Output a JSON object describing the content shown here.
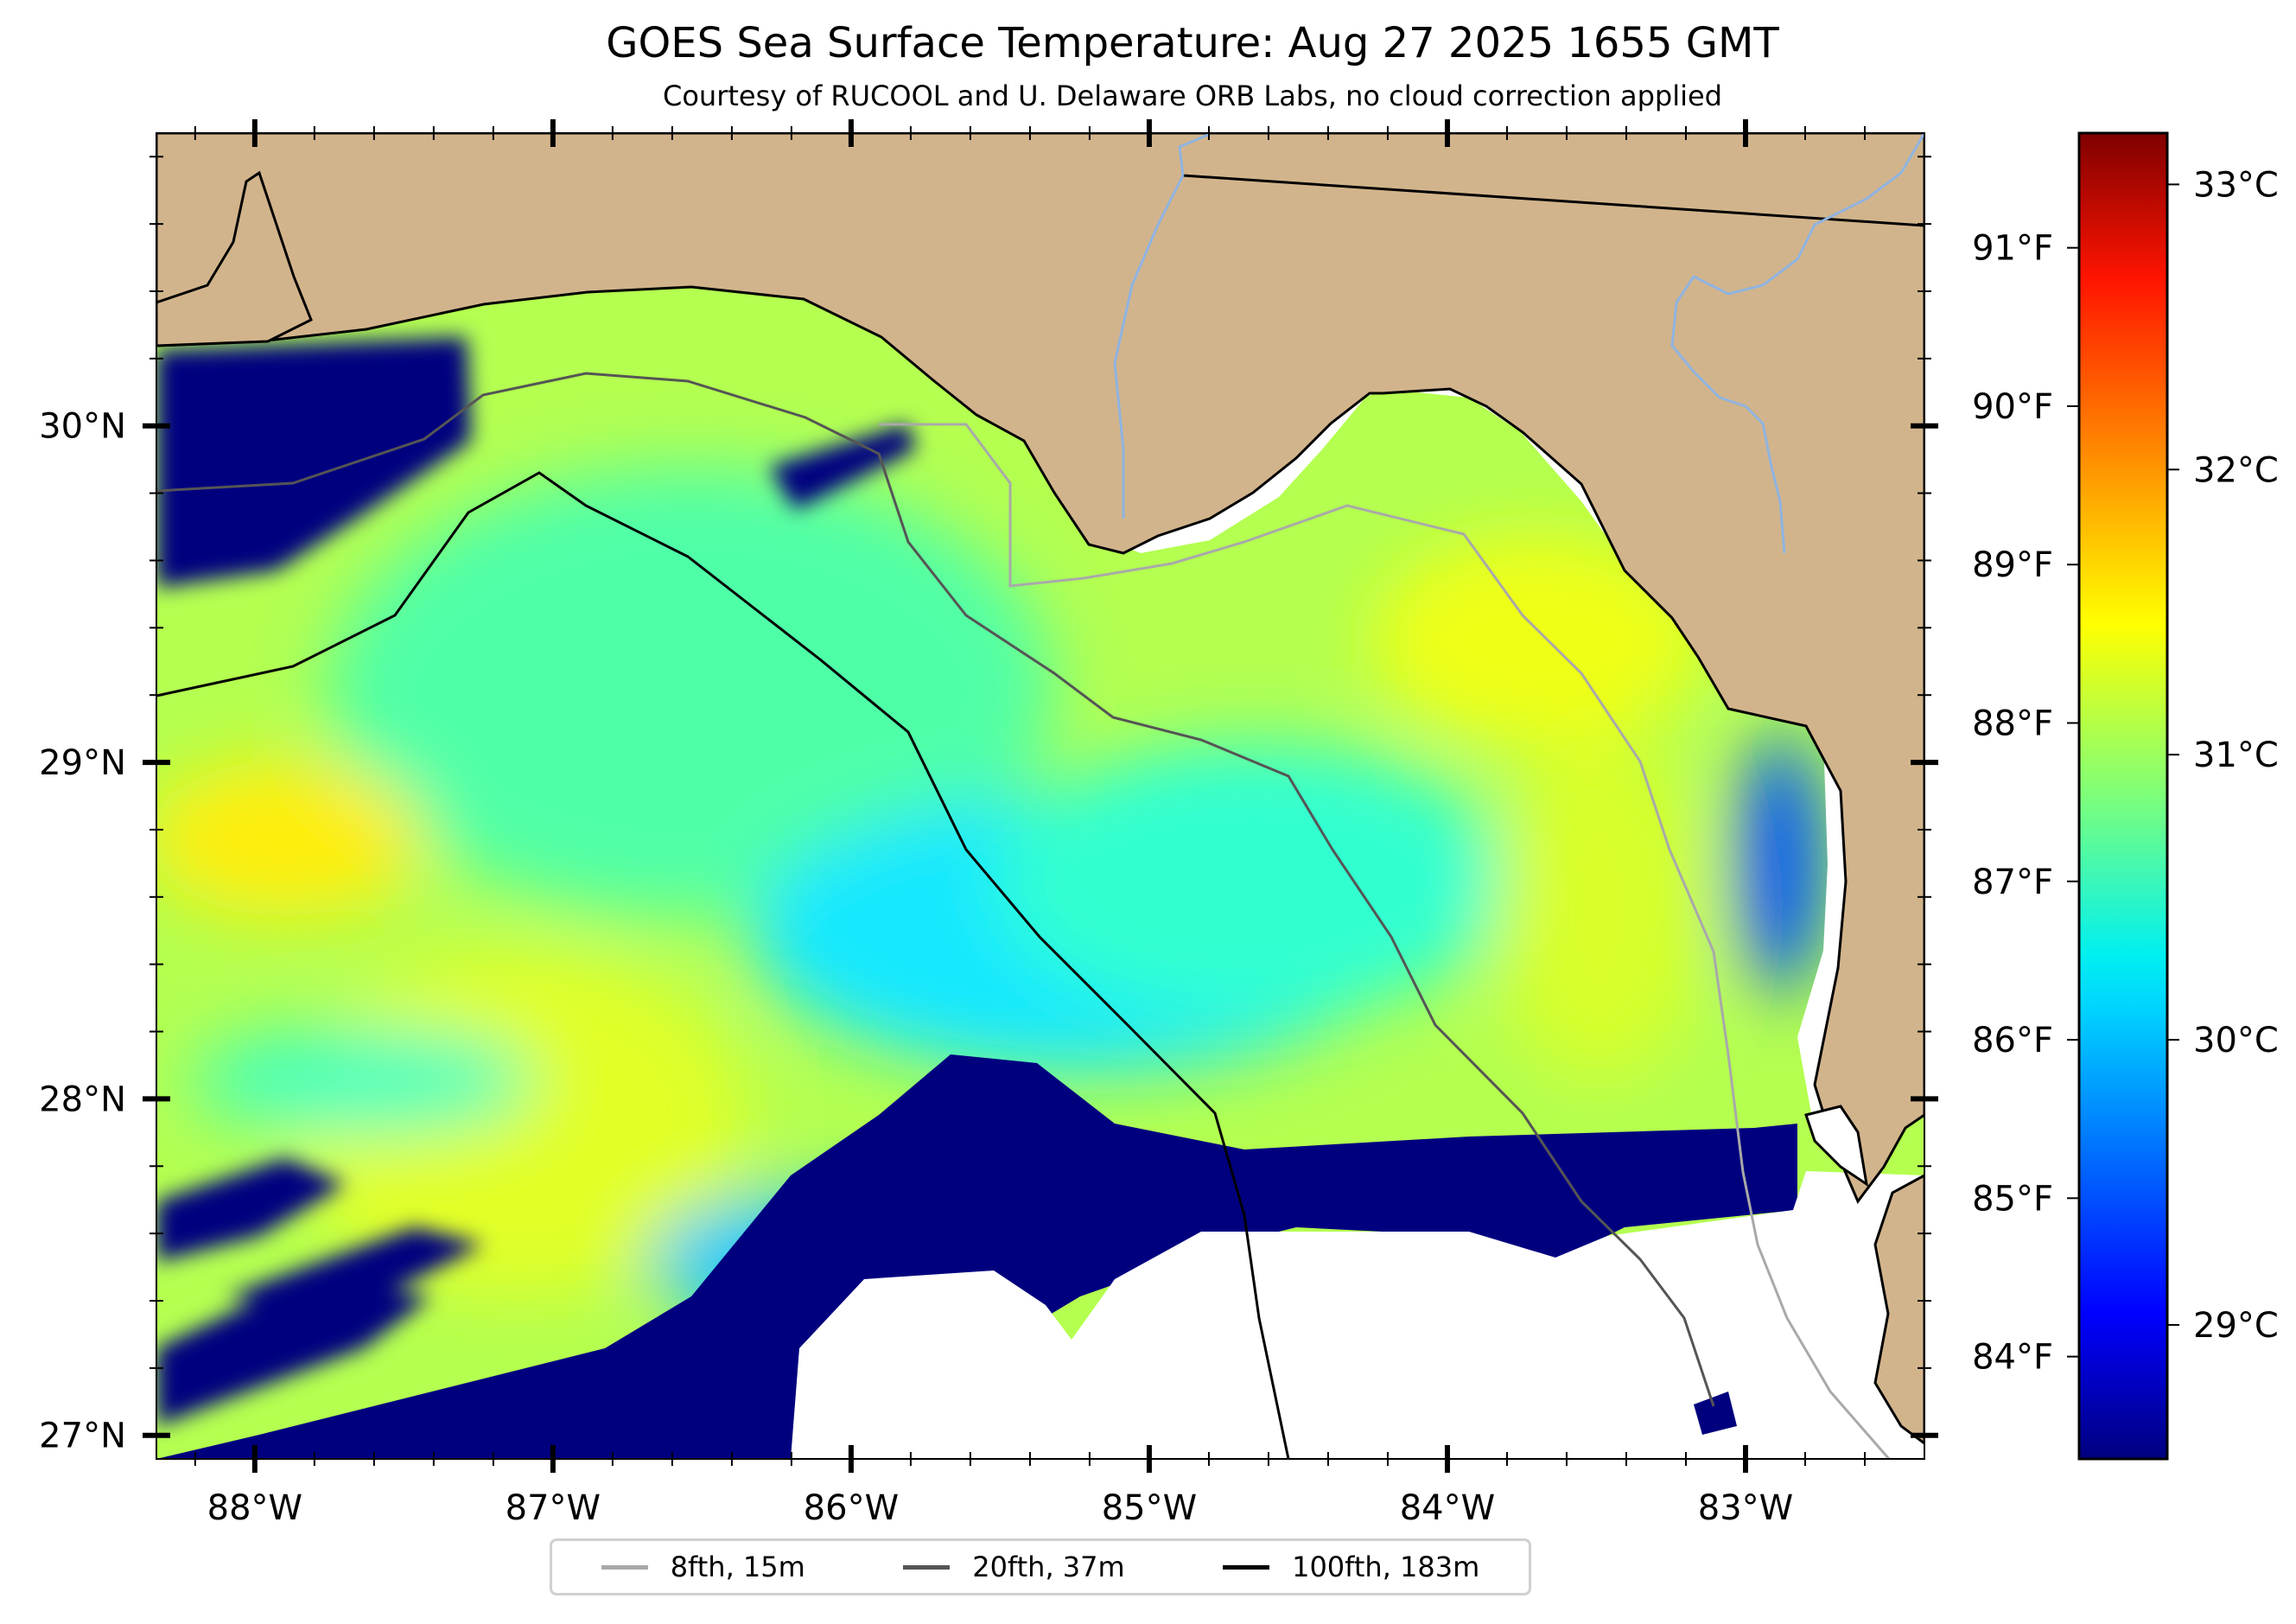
{
  "title": "GOES Sea Surface Temperature: Aug 27 2025 1655 GMT",
  "subtitle": "Courtesy of RUCOOL and U. Delaware ORB Labs, no cloud correction applied",
  "chart_data": {
    "type": "heatmap",
    "title": "GOES Sea Surface Temperature: Aug 27 2025 1655 GMT",
    "subtitle": "Courtesy of RUCOOL and U. Delaware ORB Labs, no cloud correction applied",
    "xlim": [
      -88.33,
      -82.4
    ],
    "ylim": [
      26.93,
      30.87
    ],
    "x_ticks": [
      {
        "value": -88,
        "label": "88°W"
      },
      {
        "value": -87,
        "label": "87°W"
      },
      {
        "value": -86,
        "label": "86°W"
      },
      {
        "value": -85,
        "label": "85°W"
      },
      {
        "value": -84,
        "label": "84°W"
      },
      {
        "value": -83,
        "label": "83°W"
      }
    ],
    "y_ticks": [
      {
        "value": 30,
        "label": "30°N"
      },
      {
        "value": 29,
        "label": "29°N"
      },
      {
        "value": 28,
        "label": "28°N"
      },
      {
        "value": 27,
        "label": "27°N"
      }
    ],
    "colorbar": {
      "colormap": "jet",
      "range_c": [
        28.53,
        33.18
      ],
      "celsius_ticks": [
        {
          "value": 33,
          "label": "33°C"
        },
        {
          "value": 32,
          "label": "32°C"
        },
        {
          "value": 31,
          "label": "31°C"
        },
        {
          "value": 30,
          "label": "30°C"
        },
        {
          "value": 29,
          "label": "29°C"
        }
      ],
      "fahrenheit_ticks": [
        {
          "value": 91,
          "label": "91°F"
        },
        {
          "value": 90,
          "label": "90°F"
        },
        {
          "value": 89,
          "label": "89°F"
        },
        {
          "value": 88,
          "label": "88°F"
        },
        {
          "value": 87,
          "label": "87°F"
        },
        {
          "value": 86,
          "label": "86°F"
        },
        {
          "value": 85,
          "label": "85°F"
        },
        {
          "value": 84,
          "label": "84°F"
        }
      ]
    },
    "legend": {
      "placement": "bottom-center",
      "entries": [
        {
          "label": "8fth, 15m",
          "color": "#a9a9a9"
        },
        {
          "label": "20fth, 37m",
          "color": "#555555"
        },
        {
          "label": "100fth, 183m",
          "color": "#000000"
        }
      ]
    },
    "colors": {
      "land": "#d2b48c",
      "no_data": "#ffffff",
      "river": "#8fb4e0"
    }
  }
}
